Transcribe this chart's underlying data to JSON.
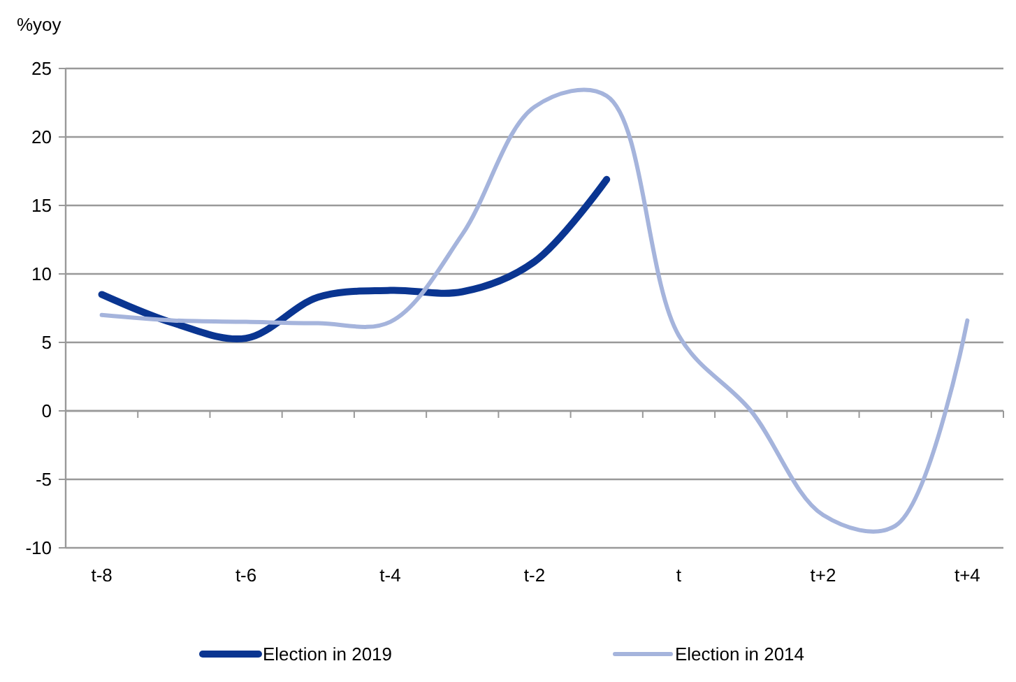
{
  "chart_data": {
    "type": "line",
    "ylabel": "%yoy",
    "categories": [
      "t-8",
      null,
      "t-6",
      null,
      "t-4",
      null,
      "t-2",
      null,
      "t",
      null,
      "t+2",
      null,
      "t+4"
    ],
    "series": [
      {
        "name": "Election in 2019",
        "color": "#0a3591",
        "values": [
          8.5,
          6.4,
          5.3,
          8.3,
          8.8,
          8.7,
          10.9,
          16.9,
          null,
          null,
          null,
          null,
          null
        ]
      },
      {
        "name": "Election in 2014",
        "color": "#a5b4dc",
        "values": [
          7.0,
          6.6,
          6.5,
          6.4,
          6.5,
          12.9,
          22.2,
          23.0,
          5.5,
          0,
          -7.6,
          -8.4,
          6.6
        ]
      }
    ],
    "ylim": [
      -10,
      25
    ],
    "yticks": [
      -10,
      -5,
      0,
      5,
      10,
      15,
      20,
      25
    ],
    "grid": "y",
    "legend": "bottom",
    "marker": "none",
    "line_style": "solid"
  }
}
